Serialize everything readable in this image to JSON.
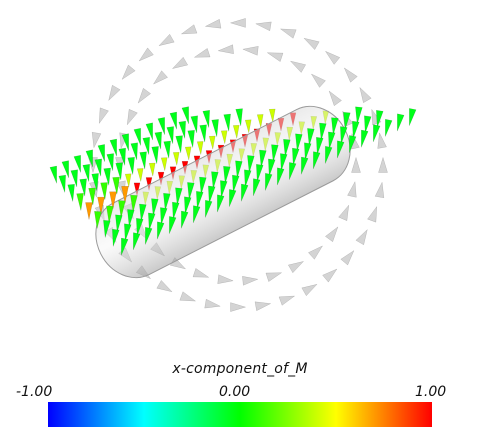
{
  "colorbar": {
    "title": "x-component_of_M",
    "tick_min": "-1.00",
    "tick_mid": "0.00",
    "tick_max": "1.00",
    "range": [
      -1.0,
      1.0
    ],
    "stops": [
      "#0000ff",
      "#00ffff",
      "#00ff00",
      "#ffff00",
      "#ff0000"
    ]
  },
  "scene": {
    "colormap_field": "x-component_of_M",
    "body_color": "#bdbdbd",
    "helix_arrow_color": "#d4d4d4",
    "plane_rows": 9,
    "plane_cols": 30
  }
}
